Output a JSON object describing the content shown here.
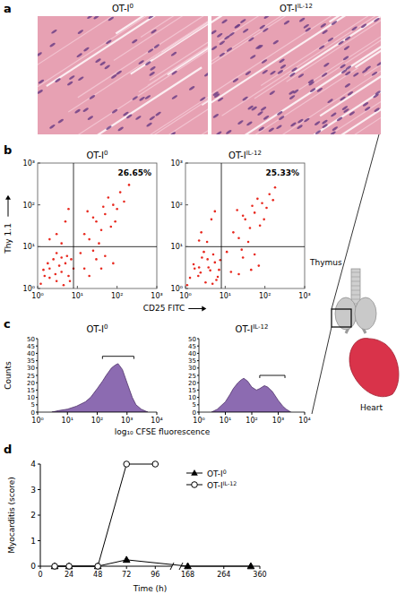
{
  "chart_data": [
    {
      "type": "scatter",
      "title": "OT-I",
      "title_sup": "0",
      "x_label": "CD25 FITC",
      "y_label": "Thy 1.1",
      "log": true,
      "xlim": [
        1,
        1000
      ],
      "ylim": [
        1,
        1000
      ],
      "xticks": [
        {
          "value": 1,
          "label": "10⁰"
        },
        {
          "value": 10,
          "label": "10¹"
        },
        {
          "value": 100,
          "label": "10²"
        },
        {
          "value": 1000,
          "label": "10³"
        }
      ],
      "yticks": [
        {
          "value": 1,
          "label": "10⁰"
        },
        {
          "value": 10,
          "label": "10¹"
        },
        {
          "value": 100,
          "label": "10²"
        },
        {
          "value": 1000,
          "label": "10³"
        }
      ],
      "x": [
        1.5,
        2,
        3,
        4,
        5,
        2.5,
        6,
        1.2,
        3.5,
        7,
        4.5,
        2,
        5.5,
        1.8,
        3,
        8,
        6.5,
        2.8,
        4,
        1.4,
        15,
        30,
        20,
        50,
        12,
        80,
        25,
        40,
        3,
        5,
        2,
        6,
        4,
        15,
        30,
        50,
        80,
        20,
        40,
        60,
        100,
        25,
        120,
        35,
        70,
        150,
        18,
        200,
        45,
        90
      ],
      "values": [
        2,
        3,
        1.5,
        2.5,
        4,
        5,
        2,
        1.3,
        3.5,
        5,
        1.2,
        1.8,
        6,
        4,
        7,
        3,
        1.5,
        2.2,
        5.5,
        2.8,
        3,
        5,
        2,
        6,
        7,
        4,
        8,
        3,
        20,
        40,
        15,
        80,
        12,
        20,
        40,
        60,
        100,
        15,
        25,
        150,
        80,
        50,
        200,
        12,
        30,
        120,
        70,
        300,
        90,
        40
      ],
      "color": "#e8281e",
      "x_gate": 8,
      "y_gate": 10,
      "annotation": "26.65%"
    },
    {
      "type": "scatter",
      "title": "OT-I",
      "title_sup": "IL-12",
      "log": true,
      "xlim": [
        1,
        1000
      ],
      "ylim": [
        1,
        1000
      ],
      "xticks": [
        {
          "value": 1,
          "label": "10⁰"
        },
        {
          "value": 10,
          "label": "10¹"
        },
        {
          "value": 100,
          "label": "10²"
        },
        {
          "value": 1000,
          "label": "10³"
        }
      ],
      "yticks": [
        {
          "value": 1,
          "label": "10⁰"
        },
        {
          "value": 10,
          "label": "10¹"
        },
        {
          "value": 100,
          "label": "10²"
        },
        {
          "value": 1000,
          "label": "10³"
        }
      ],
      "x": [
        1.3,
        2.2,
        3.2,
        4.2,
        5.5,
        2.6,
        6.5,
        1.1,
        3.8,
        7.5,
        4.8,
        2.1,
        5,
        1.6,
        2.9,
        7,
        6,
        2.4,
        3.6,
        1.7,
        14,
        28,
        22,
        55,
        11,
        70,
        26,
        45,
        2.5,
        4.5,
        2.2,
        5.5,
        3.5,
        16,
        32,
        55,
        85,
        22,
        42,
        65,
        110,
        28,
        130,
        38,
        75,
        160,
        20,
        180,
        48,
        95
      ],
      "values": [
        1.8,
        3.2,
        1.4,
        2.7,
        4.2,
        5.5,
        1.9,
        1.2,
        3.2,
        4.8,
        1.3,
        2,
        6.5,
        3.8,
        7.5,
        2.8,
        1.6,
        2.4,
        5,
        3,
        2.5,
        5.5,
        2.2,
        6.5,
        7.5,
        3.5,
        8.5,
        2.8,
        22,
        45,
        14,
        70,
        13,
        22,
        45,
        65,
        110,
        16,
        28,
        140,
        85,
        55,
        180,
        13,
        32,
        130,
        75,
        260,
        95,
        45
      ],
      "color": "#e8281e",
      "x_gate": 8,
      "y_gate": 10,
      "annotation": "25.33%"
    },
    {
      "type": "area",
      "title": "OT-I",
      "title_sup": "0",
      "x_label": "log₁₀ CFSE fluorescence",
      "y_label": "Counts",
      "log": "x",
      "xlim": [
        1,
        10000
      ],
      "ylim": [
        0,
        50
      ],
      "xticks": [
        {
          "value": 1,
          "label": "10⁰"
        },
        {
          "value": 10,
          "label": "10¹"
        },
        {
          "value": 100,
          "label": "10²"
        },
        {
          "value": 1000,
          "label": "10³"
        },
        {
          "value": 10000,
          "label": "10⁴"
        }
      ],
      "yticks": [
        0,
        5,
        10,
        15,
        20,
        25,
        30,
        35,
        40,
        45,
        50
      ],
      "x": [
        3,
        5,
        10,
        20,
        40,
        60,
        100,
        150,
        200,
        300,
        400,
        500,
        700,
        1000,
        1500,
        2000,
        3000,
        5000
      ],
      "values": [
        0,
        1,
        2,
        4,
        7,
        10,
        16,
        21,
        25,
        30,
        32,
        33,
        29,
        20,
        10,
        5,
        2,
        0
      ],
      "color": "#8c6bb1",
      "gate": {
        "x": [
          150,
          1700
        ],
        "y": 38
      }
    },
    {
      "type": "area",
      "title": "OT-I",
      "title_sup": "IL-12",
      "log": "x",
      "xlim": [
        1,
        10000
      ],
      "ylim": [
        0,
        50
      ],
      "xticks": [
        {
          "value": 1,
          "label": "10⁰"
        },
        {
          "value": 10,
          "label": "10¹"
        },
        {
          "value": 100,
          "label": "10²"
        },
        {
          "value": 1000,
          "label": "10³"
        },
        {
          "value": 10000,
          "label": "10⁴"
        }
      ],
      "yticks": [
        0,
        5,
        10,
        15,
        20,
        25,
        30,
        35,
        40,
        45,
        50
      ],
      "x": [
        3,
        5,
        10,
        15,
        20,
        30,
        40,
        50,
        70,
        100,
        150,
        200,
        300,
        400,
        600,
        1000,
        1500,
        2000,
        3000
      ],
      "values": [
        0,
        2,
        7,
        12,
        16,
        20,
        22,
        23,
        21,
        17,
        15,
        16,
        18,
        17,
        14,
        8,
        4,
        2,
        0
      ],
      "color": "#8c6bb1",
      "gate": {
        "x": [
          200,
          1800
        ],
        "y": 25
      }
    },
    {
      "type": "line",
      "x_label": "Time (h)",
      "y_label": "Myocarditis (score)",
      "xlim": [
        0,
        360
      ],
      "x_break": [
        110,
        150
      ],
      "ylim": [
        0,
        4
      ],
      "xticks": [
        0,
        24,
        48,
        72,
        96,
        168,
        264,
        360
      ],
      "yticks": [
        0,
        1,
        2,
        3,
        4
      ],
      "legend": "upper right",
      "series": [
        {
          "name": "OT-I",
          "name_sup": "0",
          "color": "#000000",
          "marker": "triangle",
          "line_style": "solid",
          "x": [
            12,
            24,
            48,
            72,
            168,
            336
          ],
          "values": [
            0,
            0,
            0,
            0.25,
            0,
            0
          ]
        },
        {
          "name": "OT-I",
          "name_sup": "IL-12",
          "color": "#000000",
          "marker": "circle",
          "line_style": "solid",
          "x": [
            12,
            24,
            48,
            72,
            96
          ],
          "values": [
            0,
            0,
            0,
            4,
            4
          ]
        }
      ]
    }
  ],
  "figure": {
    "panel_letters": [
      "a",
      "b",
      "c",
      "d"
    ],
    "histology": {
      "titles": [
        {
          "text": "OT-I",
          "sup": "0"
        },
        {
          "text": "OT-I",
          "sup": "IL-12"
        }
      ]
    },
    "diagram": {
      "labels": [
        "Thymus",
        "Heart"
      ]
    }
  }
}
